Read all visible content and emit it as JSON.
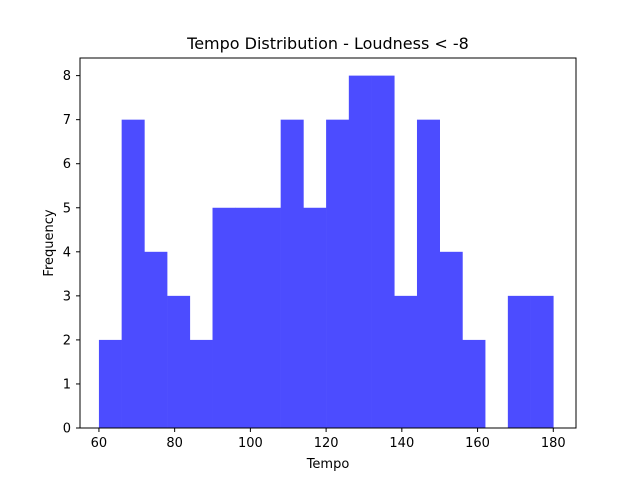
{
  "chart_data": {
    "type": "bar",
    "title": "Tempo Distribution - Loudness < -8",
    "xlabel": "Tempo",
    "ylabel": "Frequency",
    "bin_edges": [
      60,
      66,
      72,
      78,
      84,
      90,
      96,
      102,
      108,
      114,
      120,
      126,
      132,
      138,
      144,
      150,
      156,
      162,
      168,
      174,
      180
    ],
    "counts": [
      2,
      7,
      4,
      3,
      2,
      5,
      5,
      5,
      7,
      5,
      7,
      8,
      8,
      3,
      7,
      4,
      2,
      0,
      3,
      3
    ],
    "xlim": [
      55,
      186
    ],
    "ylim": [
      0,
      8.4
    ],
    "xticks": [
      60,
      80,
      100,
      120,
      140,
      160,
      180
    ],
    "yticks": [
      0,
      1,
      2,
      3,
      4,
      5,
      6,
      7,
      8
    ],
    "bar_color": "#4c4cff",
    "grid": false
  }
}
